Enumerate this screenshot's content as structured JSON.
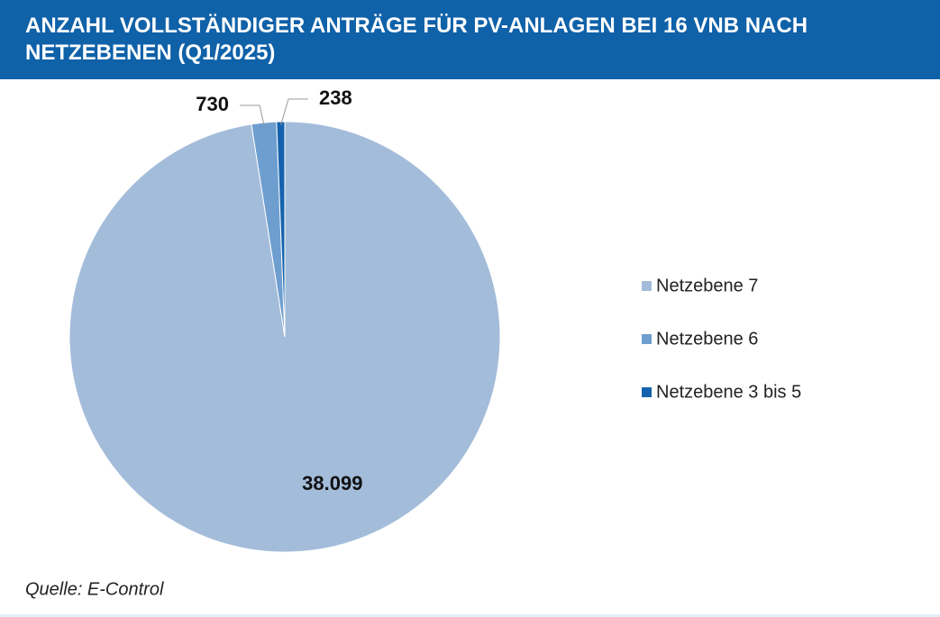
{
  "chart_data": {
    "type": "pie",
    "title": "ANZAHL VOLLSTÄNDIGER ANTRÄGE FÜR PV-ANLAGEN BEI 16 VNB NACH NETZEBENEN (Q1/2025)",
    "categories": [
      "Netzebene 7",
      "Netzebene 6",
      "Netzebene 3 bis 5"
    ],
    "values": [
      38099,
      730,
      238
    ],
    "value_labels": [
      "38.099",
      "730",
      "238"
    ],
    "colors": [
      "#a3bcda",
      "#6e9ecf",
      "#1462ad"
    ],
    "legend": "right",
    "source": "Quelle: E-Control"
  }
}
